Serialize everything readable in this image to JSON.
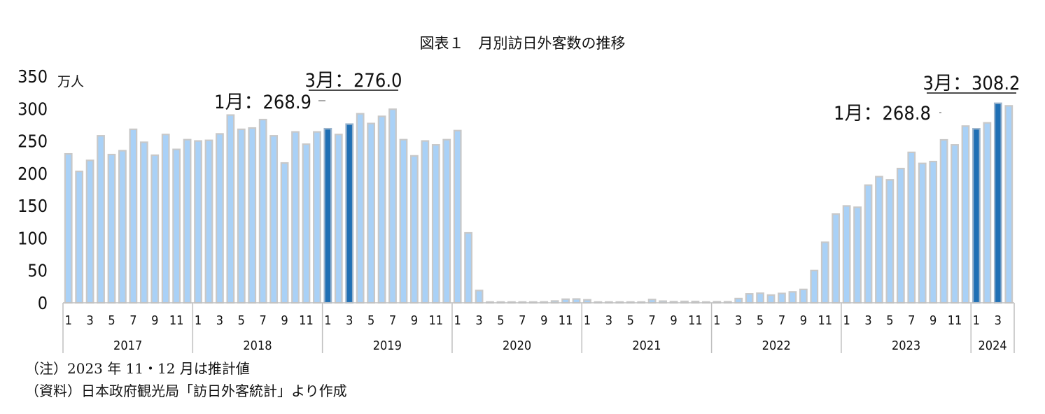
{
  "title": "図表１　月別訪日外客数の推移",
  "notes": {
    "note1": "（注）2023 年 11・12 月は推計値",
    "note2": "（資料）日本政府観光局「訪日外客統計」より作成"
  },
  "colors": {
    "bar": "#a9d1f7",
    "bar_stroke": "#c8c8c8",
    "highlight": "#1f6fb4",
    "axis": "#bfbfbf"
  },
  "chart_data": {
    "type": "bar",
    "unit": "万人",
    "ylim": [
      0,
      350
    ],
    "yticks": [
      0,
      50,
      100,
      150,
      200,
      250,
      300,
      350
    ],
    "grid": false,
    "month_tick_labels": [
      "1",
      "3",
      "5",
      "7",
      "9",
      "11"
    ],
    "years": [
      {
        "label": "2017",
        "values": [
          230,
          203,
          220,
          258,
          229,
          235,
          268,
          248,
          228,
          260,
          237,
          252
        ]
      },
      {
        "label": "2018",
        "values": [
          250,
          251,
          261,
          290,
          268,
          270,
          283,
          258,
          216,
          264,
          245,
          264
        ]
      },
      {
        "label": "2019",
        "values": [
          268.9,
          260,
          276.0,
          292,
          277,
          288,
          299,
          252,
          227,
          250,
          244,
          252
        ]
      },
      {
        "label": "2020",
        "values": [
          266,
          108,
          19,
          0.3,
          0.2,
          0.3,
          0.4,
          0.9,
          1.4,
          2.8,
          5.6,
          5.9
        ]
      },
      {
        "label": "2021",
        "values": [
          4.6,
          0.7,
          1.2,
          1.1,
          1.0,
          1.0,
          5.1,
          2.6,
          1.8,
          2.2,
          2.1,
          1.2
        ]
      },
      {
        "label": "2022",
        "values": [
          1.7,
          1.7,
          6.6,
          13.9,
          14.8,
          12.0,
          14.5,
          16.9,
          20.7,
          49.9,
          93.5,
          137.0
        ]
      },
      {
        "label": "2023",
        "values": [
          149.7,
          147.6,
          181.8,
          194.9,
          189.9,
          207.4,
          232.4,
          215.3,
          218.2,
          251.7,
          244.0,
          273.0
        ]
      },
      {
        "label": "2024",
        "values": [
          268.8,
          278.0,
          308.2,
          304.3
        ]
      }
    ],
    "highlight": [
      [
        2019,
        1
      ],
      [
        2019,
        3
      ],
      [
        2024,
        1
      ],
      [
        2024,
        3
      ]
    ],
    "annotations": [
      {
        "text": "1月：268.9",
        "year": 2019,
        "month": 1,
        "underline": false
      },
      {
        "text": "3月：276.0",
        "year": 2019,
        "month": 3,
        "underline": true
      },
      {
        "text": "1月：268.8",
        "year": 2024,
        "month": 1,
        "underline": false
      },
      {
        "text": "3月：308.2",
        "year": 2024,
        "month": 3,
        "underline": true
      }
    ]
  }
}
